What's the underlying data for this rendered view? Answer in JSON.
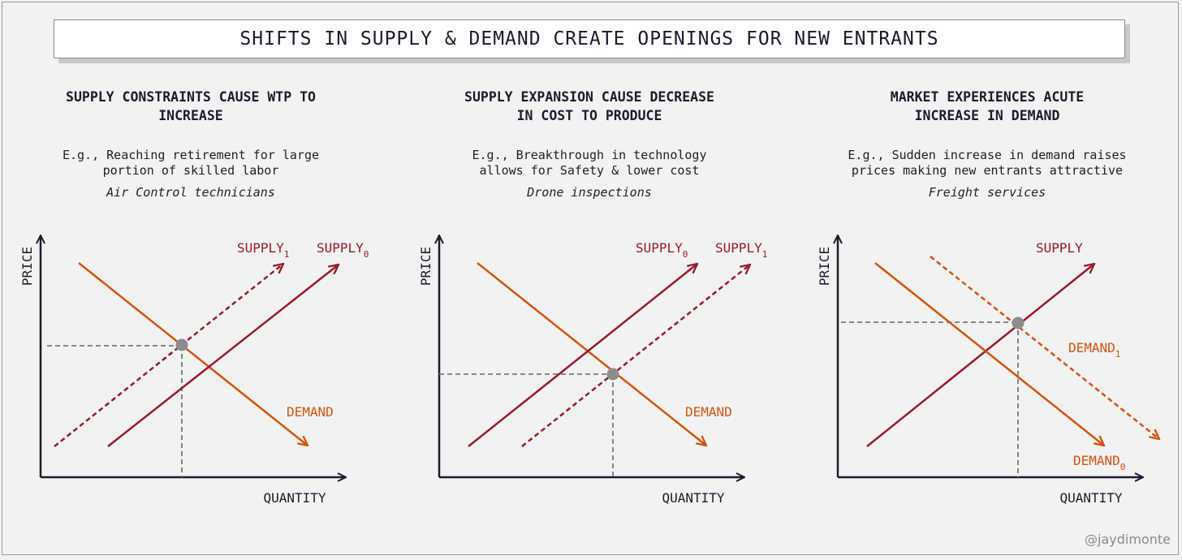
{
  "title": "SHIFTS IN SUPPLY & DEMAND CREATE OPENINGS FOR NEW ENTRANTS",
  "watermark": "@jaydimonte",
  "colors": {
    "supply": "#9b1b2b",
    "demand": "#d9520e",
    "axis": "#1b1d2e",
    "guide": "#7a7a7a",
    "point": "#8c8c8c"
  },
  "panels": [
    {
      "heading_line1": "SUPPLY CONSTRAINTS CAUSE WTP TO",
      "heading_line2": "INCREASE",
      "desc_line1": "E.g., Reaching retirement for large",
      "desc_line2": "portion of skilled labor",
      "example": "Air Control technicians",
      "y_label": "PRICE",
      "x_label": "QUANTITY",
      "labels": {
        "a": "SUPPLY",
        "a_sub": "1",
        "b": "SUPPLY",
        "b_sub": "0",
        "c": "DEMAND"
      }
    },
    {
      "heading_line1": "SUPPLY EXPANSION CAUSE DECREASE",
      "heading_line2": "IN COST TO PRODUCE",
      "desc_line1": "E.g., Breakthrough in technology",
      "desc_line2": "allows for Safety & lower cost",
      "example": "Drone inspections",
      "y_label": "PRICE",
      "x_label": "QUANTITY",
      "labels": {
        "a": "SUPPLY",
        "a_sub": "0",
        "b": "SUPPLY",
        "b_sub": "1",
        "c": "DEMAND"
      }
    },
    {
      "heading_line1": "MARKET EXPERIENCES ACUTE",
      "heading_line2": "INCREASE IN DEMAND",
      "desc_line1": "E.g., Sudden increase in demand raises",
      "desc_line2": "prices making new entrants attractive",
      "example": "Freight services",
      "y_label": "PRICE",
      "x_label": "QUANTITY",
      "labels": {
        "a": "SUPPLY",
        "b": "DEMAND",
        "b_sub": "1",
        "c": "DEMAND",
        "c_sub": "0"
      }
    }
  ]
}
